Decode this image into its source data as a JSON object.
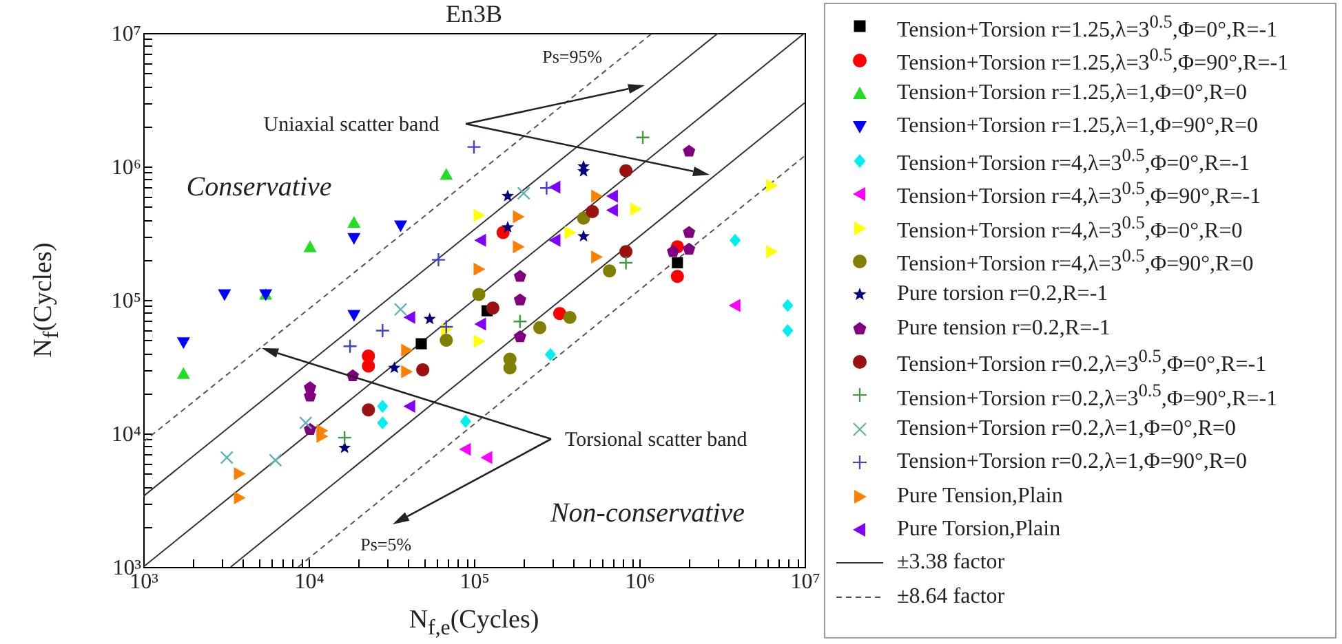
{
  "chart_data": {
    "type": "scatter",
    "title": "En3B",
    "xlabel": "N$_{f,e}$(Cycles)",
    "ylabel": "N$_{f}$(Cycles)",
    "log": "xy",
    "legend": "right",
    "xlim": [
      1000,
      10000000
    ],
    "ylim": [
      1000,
      10000000
    ],
    "xticks": [
      {
        "value": 1000,
        "label": "10³"
      },
      {
        "value": 2000,
        "label": null
      },
      {
        "value": 3000,
        "label": null
      },
      {
        "value": 4000,
        "label": null
      },
      {
        "value": 5000,
        "label": null
      },
      {
        "value": 6000,
        "label": null
      },
      {
        "value": 7000,
        "label": null
      },
      {
        "value": 8000,
        "label": null
      },
      {
        "value": 9000,
        "label": null
      },
      {
        "value": 10000,
        "label": "10⁴"
      },
      {
        "value": 20000,
        "label": null
      },
      {
        "value": 30000,
        "label": null
      },
      {
        "value": 40000,
        "label": null
      },
      {
        "value": 50000,
        "label": null
      },
      {
        "value": 60000,
        "label": null
      },
      {
        "value": 70000,
        "label": null
      },
      {
        "value": 80000,
        "label": null
      },
      {
        "value": 90000,
        "label": null
      },
      {
        "value": 100000,
        "label": "10⁵"
      },
      {
        "value": 200000,
        "label": null
      },
      {
        "value": 300000,
        "label": null
      },
      {
        "value": 400000,
        "label": null
      },
      {
        "value": 500000,
        "label": null
      },
      {
        "value": 600000,
        "label": null
      },
      {
        "value": 700000,
        "label": null
      },
      {
        "value": 800000,
        "label": null
      },
      {
        "value": 900000,
        "label": null
      },
      {
        "value": 1000000,
        "label": "10⁶"
      },
      {
        "value": 2000000,
        "label": null
      },
      {
        "value": 3000000,
        "label": null
      },
      {
        "value": 4000000,
        "label": null
      },
      {
        "value": 5000000,
        "label": null
      },
      {
        "value": 6000000,
        "label": null
      },
      {
        "value": 7000000,
        "label": null
      },
      {
        "value": 8000000,
        "label": null
      },
      {
        "value": 9000000,
        "label": null
      },
      {
        "value": 10000000,
        "label": "10⁷"
      }
    ],
    "yticks": [
      {
        "value": 1000,
        "label": "10³"
      },
      {
        "value": 2000,
        "label": null
      },
      {
        "value": 3000,
        "label": null
      },
      {
        "value": 4000,
        "label": null
      },
      {
        "value": 5000,
        "label": null
      },
      {
        "value": 6000,
        "label": null
      },
      {
        "value": 7000,
        "label": null
      },
      {
        "value": 8000,
        "label": null
      },
      {
        "value": 9000,
        "label": null
      },
      {
        "value": 10000,
        "label": "10⁴"
      },
      {
        "value": 20000,
        "label": null
      },
      {
        "value": 30000,
        "label": null
      },
      {
        "value": 40000,
        "label": null
      },
      {
        "value": 50000,
        "label": null
      },
      {
        "value": 60000,
        "label": null
      },
      {
        "value": 70000,
        "label": null
      },
      {
        "value": 80000,
        "label": null
      },
      {
        "value": 90000,
        "label": null
      },
      {
        "value": 100000,
        "label": "10⁵"
      },
      {
        "value": 200000,
        "label": null
      },
      {
        "value": 300000,
        "label": null
      },
      {
        "value": 400000,
        "label": null
      },
      {
        "value": 500000,
        "label": null
      },
      {
        "value": 600000,
        "label": null
      },
      {
        "value": 700000,
        "label": null
      },
      {
        "value": 800000,
        "label": null
      },
      {
        "value": 900000,
        "label": null
      },
      {
        "value": 1000000,
        "label": "10⁶"
      },
      {
        "value": 2000000,
        "label": null
      },
      {
        "value": 3000000,
        "label": null
      },
      {
        "value": 4000000,
        "label": null
      },
      {
        "value": 5000000,
        "label": null
      },
      {
        "value": 6000000,
        "label": null
      },
      {
        "value": 7000000,
        "label": null
      },
      {
        "value": 8000000,
        "label": null
      },
      {
        "value": 9000000,
        "label": null
      },
      {
        "value": 10000000,
        "label": "10⁷"
      }
    ],
    "series": [
      {
        "name": "Tension+Torsion r=1.25,λ=3$^{0.5}$,Φ=0°,R=-1",
        "color": "#000000",
        "marker": "square",
        "x": [
          48000,
          120000,
          1700000
        ],
        "values": [
          47000,
          83000,
          190000
        ]
      },
      {
        "name": "Tension+Torsion r=1.25,λ=3$^{0.5}$,Φ=90°,R=-1",
        "color": "#ff0000",
        "marker": "circle",
        "x": [
          23000,
          23000,
          150000,
          330000,
          1700000,
          1700000
        ],
        "values": [
          38000,
          32000,
          320000,
          79000,
          250000,
          150000
        ]
      },
      {
        "name": "Tension+Torsion r=1.25,λ=1,Φ=0°,R=0",
        "color": "#22dd22",
        "marker": "triangle",
        "x": [
          68000,
          18800,
          10200,
          5500,
          1750
        ],
        "values": [
          870000,
          380000,
          250000,
          110000,
          28000
        ]
      },
      {
        "name": "Tension+Torsion r=1.25,λ=1,Φ=90°,R=0",
        "color": "#0000ff",
        "marker": "triangle-down",
        "x": [
          18800,
          36000,
          3100,
          5500,
          18800,
          1750
        ],
        "values": [
          290000,
          360000,
          110000,
          110000,
          77000,
          48000
        ]
      },
      {
        "name": "Tension+Torsion r=4,λ=3$^{0.5}$,Φ=0°,R=-1",
        "color": "#00f0f0",
        "marker": "diamond",
        "x": [
          28000,
          28000,
          89000,
          290000,
          3800000,
          7900000,
          7900000
        ],
        "values": [
          16000,
          12000,
          12300,
          39000,
          280000,
          91000,
          59000
        ]
      },
      {
        "name": "Tension+Torsion r=4,λ=3$^{0.5}$,Φ=90°,R=-1",
        "color": "#ff00ff",
        "marker": "triangle-left",
        "x": [
          89000,
          120000,
          3800000
        ],
        "values": [
          7600,
          6600,
          91000
        ]
      },
      {
        "name": "Tension+Torsion r=4,λ=3$^{0.5}$,Φ=0°,R=0",
        "color": "#ffff00",
        "marker": "triangle-right",
        "x": [
          107000,
          950000,
          380000,
          6300000,
          6300000,
          107000,
          68000
        ],
        "values": [
          430000,
          480000,
          320000,
          720000,
          230000,
          49000,
          60000
        ]
      },
      {
        "name": "Tension+Torsion r=4,λ=3$^{0.5}$,Φ=90°,R=0",
        "color": "#808000",
        "marker": "circle",
        "x": [
          460000,
          660000,
          107000,
          380000,
          250000,
          165000,
          165000,
          68000
        ],
        "values": [
          410000,
          165000,
          110000,
          74000,
          62000,
          36000,
          31000,
          50000
        ]
      },
      {
        "name": "Pure torsion r=0.2,R=-1",
        "color": "#000080",
        "marker": "star",
        "x": [
          54000,
          33000,
          16500,
          460000,
          460000,
          160000,
          160000,
          460000
        ],
        "values": [
          72000,
          31000,
          7800,
          1000000,
          920000,
          600000,
          350000,
          300000
        ]
      },
      {
        "name": "Pure tension r=0.2,R=-1",
        "color": "#800080",
        "x": [
          18500,
          10200,
          10200,
          10200,
          2000000,
          190000,
          2000000,
          1600000,
          2000000,
          190000,
          190000
        ],
        "values": [
          27000,
          22000,
          19000,
          10700,
          1300000,
          150000,
          320000,
          230000,
          240000,
          100000,
          53000
        ]
      },
      {
        "name": "Tension+Torsion r=0.2,λ=3$^{0.5}$,Φ=0°,R=-1",
        "color": "#9b1010",
        "marker": "circle",
        "x": [
          49000,
          23000,
          830000,
          520000,
          830000,
          130000
        ],
        "values": [
          30000,
          15000,
          930000,
          460000,
          230000,
          87000
        ]
      },
      {
        "name": "Tension+Torsion r=0.2,λ=3$^{0.5}$,Φ=90°,R=-1",
        "color": "#3c9a3c",
        "marker": "cross",
        "x": [
          16500,
          1050000,
          830000,
          190000
        ],
        "values": [
          9300,
          1650000,
          190000,
          69000
        ]
      },
      {
        "name": "Tension+Torsion r=0.2,λ=1,Φ=0°,R=0",
        "color": "#5fb3b3",
        "marker": "x",
        "x": [
          36000,
          9600,
          3200,
          6300,
          200000
        ],
        "values": [
          85000,
          12000,
          6600,
          6300,
          630000
        ]
      },
      {
        "name": "Tension+Torsion r=0.2,λ=1,Φ=90°,R=0",
        "color": "#4040cc",
        "marker": "cross",
        "x": [
          61000,
          100000,
          28000,
          17800,
          275000,
          68000
        ],
        "values": [
          200000,
          1400000,
          59000,
          45000,
          690000,
          63000
        ]
      },
      {
        "name": "Pure Tension,Plain",
        "color": "#ff8000",
        "marker": "triangle-right",
        "x": [
          39000,
          39000,
          12000,
          12000,
          3800,
          3800,
          550000,
          185000,
          185000,
          107000,
          550000
        ],
        "values": [
          42000,
          29000,
          10500,
          9500,
          5000,
          3300,
          600000,
          420000,
          250000,
          170000,
          210000
        ]
      },
      {
        "name": "Pure Torsion,Plain",
        "color": "#8000ff",
        "marker": "triangle-left",
        "x": [
          41000,
          41000,
          310000,
          690000,
          690000,
          110000,
          310000,
          110000
        ],
        "values": [
          74000,
          16000,
          700000,
          600000,
          470000,
          280000,
          280000,
          66000
        ]
      },
      {
        "name": "±3.38 factor",
        "type": "line",
        "color": "#333333",
        "line_style": "solid",
        "x": [
          1000,
          3000000
        ],
        "values": [
          3380,
          10000000
        ]
      },
      {
        "type": "line",
        "color": "#333333",
        "line_style": "solid",
        "x": [
          1000,
          10000000
        ],
        "values": [
          1000,
          10000000
        ]
      },
      {
        "type": "line",
        "color": "#333333",
        "line_style": "solid",
        "x": [
          3380,
          10000000
        ],
        "values": [
          1000,
          3000000
        ]
      },
      {
        "name": "±8.64 factor",
        "type": "line",
        "color": "#555555",
        "line_style": "dashed",
        "x": [
          1000,
          1200000
        ],
        "values": [
          8640,
          10000000
        ]
      },
      {
        "type": "line",
        "color": "#555555",
        "line_style": "dashed",
        "x": [
          8640,
          10000000
        ],
        "values": [
          1000,
          1200000
        ]
      }
    ],
    "annotations": [
      "Uniaxial scatter band",
      "Torsional scatter band",
      "Conservative",
      "Non-conservative",
      {
        "text": "Ps=95%",
        "x": 600000,
        "y": 5200000
      },
      {
        "text": "Ps=5%",
        "x": 20000,
        "y": 2300
      }
    ]
  }
}
